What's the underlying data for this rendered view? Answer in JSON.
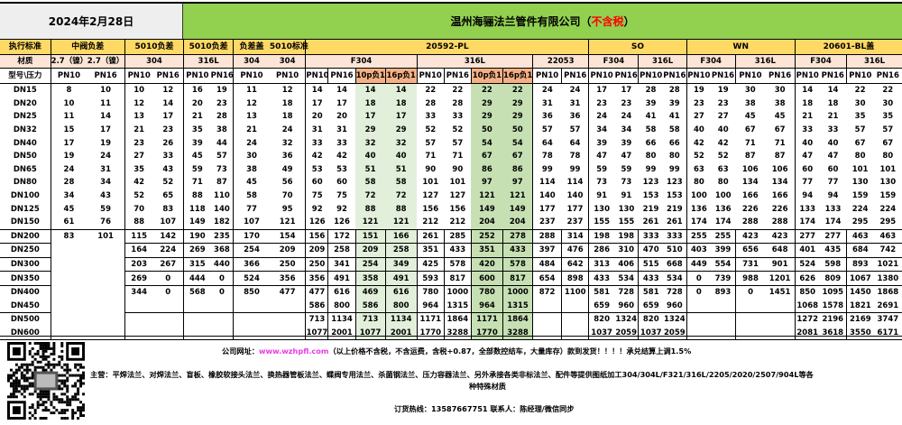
{
  "title": {
    "date": "2024年2月28日",
    "company": "温州海骊法兰管件有限公司（",
    "tax_note": "不含税",
    "close": "）"
  },
  "colors": {
    "title_left": "#eeeeee",
    "title_right": "#92d050",
    "header": "#ffd966",
    "material": "#fce4d6",
    "tolerance_header": "#f4b084",
    "f304_shade": "#e2efda",
    "316l_shade": "#c6e0b4",
    "tax_note": "#ff0000",
    "link": "#e83ae8"
  },
  "header": {
    "row1": [
      {
        "label": "执行标准",
        "span": 1
      },
      {
        "label": "中阀负差",
        "span": 2
      },
      {
        "label": "5010负差",
        "span": 2
      },
      {
        "label": "5010负差",
        "span": 2
      },
      {
        "label": "负差盖",
        "span": 1
      },
      {
        "label": "5010标准",
        "span": 1
      },
      {
        "label": "20592-PL",
        "span": 10
      },
      {
        "label": "SO",
        "span": 4
      },
      {
        "label": "WN",
        "span": 4
      },
      {
        "label": "20601-BL盖",
        "span": 4
      }
    ],
    "row2": [
      {
        "label": "材质",
        "span": 1
      },
      {
        "label": "2.7（镍）",
        "span": 1
      },
      {
        "label": "2.7（镍）",
        "span": 1
      },
      {
        "label": "304",
        "span": 2
      },
      {
        "label": "316L",
        "span": 2
      },
      {
        "label": "304",
        "span": 1
      },
      {
        "label": "304",
        "span": 1
      },
      {
        "label": "F304",
        "span": 4
      },
      {
        "label": "316L",
        "span": 4
      },
      {
        "label": "22053",
        "span": 2
      },
      {
        "label": "F304",
        "span": 2
      },
      {
        "label": "316L",
        "span": 2
      },
      {
        "label": "F304",
        "span": 2
      },
      {
        "label": "316L",
        "span": 2
      },
      {
        "label": "F304",
        "span": 2
      },
      {
        "label": "316L",
        "span": 2
      }
    ],
    "row3": [
      "型号\\压力",
      "PN10",
      "PN16",
      "PN10",
      "PN16",
      "PN10",
      "PN16",
      "PN10",
      "PN10",
      "PN10",
      "PN16",
      "10p负1",
      "16p负1",
      "PN10",
      "PN16",
      "10p负1",
      "16p负1",
      "PN10",
      "PN16",
      "PN10",
      "PN16",
      "PN10",
      "PN16",
      "PN10",
      "PN16",
      "PN10",
      "PN16",
      "PN10",
      "PN16",
      "PN10",
      "PN16"
    ]
  },
  "rows": [
    {
      "size": "DN15",
      "values": [
        8,
        10,
        10,
        12,
        16,
        19,
        11,
        12,
        14,
        14,
        14,
        14,
        22,
        22,
        22,
        22,
        24,
        24,
        17,
        17,
        28,
        28,
        19,
        19,
        30,
        30,
        14,
        14,
        22,
        22
      ]
    },
    {
      "size": "DN20",
      "values": [
        10,
        11,
        12,
        14,
        20,
        23,
        12,
        18,
        17,
        17,
        18,
        18,
        28,
        28,
        29,
        29,
        31,
        31,
        23,
        23,
        39,
        39,
        23,
        23,
        38,
        38,
        18,
        18,
        30,
        30
      ]
    },
    {
      "size": "DN25",
      "values": [
        11,
        14,
        13,
        17,
        21,
        28,
        13,
        18,
        20,
        20,
        17,
        17,
        33,
        33,
        29,
        29,
        36,
        36,
        24,
        24,
        41,
        41,
        27,
        27,
        45,
        45,
        21,
        21,
        35,
        35
      ]
    },
    {
      "size": "DN32",
      "values": [
        15,
        17,
        21,
        23,
        35,
        38,
        21,
        24,
        31,
        31,
        29,
        29,
        52,
        52,
        50,
        50,
        57,
        57,
        34,
        34,
        58,
        58,
        40,
        40,
        67,
        67,
        33,
        33,
        57,
        57
      ]
    },
    {
      "size": "DN40",
      "values": [
        17,
        19,
        23,
        26,
        39,
        44,
        24,
        32,
        33,
        33,
        32,
        32,
        57,
        57,
        54,
        54,
        64,
        64,
        39,
        39,
        66,
        66,
        42,
        42,
        71,
        71,
        40,
        40,
        67,
        67
      ]
    },
    {
      "size": "DN50",
      "values": [
        19,
        24,
        27,
        33,
        45,
        57,
        30,
        36,
        42,
        42,
        40,
        40,
        71,
        71,
        67,
        67,
        78,
        78,
        47,
        47,
        80,
        80,
        52,
        52,
        87,
        87,
        47,
        47,
        80,
        80
      ]
    },
    {
      "size": "DN65",
      "values": [
        24,
        31,
        35,
        43,
        59,
        73,
        38,
        49,
        53,
        53,
        51,
        51,
        90,
        90,
        86,
        86,
        99,
        99,
        59,
        59,
        99,
        99,
        63,
        63,
        106,
        106,
        60,
        60,
        101,
        101
      ]
    },
    {
      "size": "DN80",
      "values": [
        28,
        34,
        42,
        52,
        71,
        87,
        45,
        56,
        60,
        60,
        58,
        58,
        101,
        101,
        97,
        97,
        114,
        114,
        73,
        73,
        123,
        123,
        80,
        80,
        134,
        134,
        77,
        77,
        130,
        130
      ]
    },
    {
      "size": "DN100",
      "values": [
        34,
        43,
        52,
        65,
        88,
        110,
        58,
        70,
        75,
        75,
        72,
        72,
        127,
        127,
        121,
        121,
        140,
        140,
        91,
        91,
        153,
        153,
        100,
        100,
        166,
        166,
        94,
        94,
        159,
        159
      ]
    },
    {
      "size": "DN125",
      "values": [
        45,
        59,
        70,
        83,
        118,
        140,
        77,
        95,
        92,
        92,
        88,
        88,
        156,
        156,
        149,
        149,
        177,
        177,
        130,
        130,
        219,
        219,
        136,
        136,
        226,
        226,
        133,
        133,
        224,
        224
      ]
    },
    {
      "size": "DN150",
      "values": [
        61,
        76,
        88,
        107,
        149,
        182,
        107,
        121,
        126,
        126,
        121,
        121,
        212,
        212,
        204,
        204,
        237,
        237,
        155,
        155,
        261,
        261,
        174,
        174,
        288,
        288,
        174,
        174,
        295,
        295
      ]
    },
    {
      "size": "DN200",
      "values": [
        83,
        101,
        115,
        142,
        190,
        235,
        170,
        154,
        156,
        172,
        151,
        166,
        261,
        285,
        252,
        278,
        288,
        314,
        198,
        198,
        333,
        333,
        255,
        255,
        423,
        423,
        277,
        277,
        463,
        463
      ]
    },
    {
      "size": "DN250",
      "values": [
        null,
        null,
        164,
        224,
        269,
        368,
        254,
        209,
        209,
        258,
        209,
        258,
        351,
        433,
        351,
        433,
        397,
        476,
        286,
        310,
        470,
        510,
        403,
        399,
        656,
        648,
        401,
        435,
        684,
        742
      ]
    },
    {
      "size": "DN300",
      "values": [
        null,
        null,
        203,
        267,
        315,
        440,
        366,
        250,
        250,
        341,
        254,
        349,
        425,
        578,
        420,
        578,
        484,
        642,
        313,
        406,
        515,
        668,
        449,
        554,
        731,
        901,
        524,
        598,
        893,
        1021
      ]
    },
    {
      "size": "DN350",
      "values": [
        null,
        null,
        269,
        0,
        444,
        0,
        524,
        356,
        356,
        491,
        358,
        491,
        593,
        817,
        600,
        817,
        654,
        898,
        433,
        534,
        433,
        534,
        0,
        739,
        988,
        1201,
        626,
        809,
        1067,
        1380
      ]
    },
    {
      "size": "DN400",
      "values": [
        null,
        null,
        344,
        0,
        568,
        0,
        850,
        477,
        477,
        616,
        469,
        616,
        780,
        1000,
        780,
        1000,
        872,
        1100,
        581,
        728,
        581,
        728,
        0,
        893,
        0,
        1451,
        850,
        1095,
        1450,
        1868
      ]
    },
    {
      "size": "DN450",
      "values": [
        null,
        null,
        null,
        null,
        null,
        null,
        null,
        null,
        586,
        800,
        586,
        800,
        964,
        1315,
        964,
        1315,
        null,
        null,
        659,
        960,
        659,
        960,
        null,
        null,
        null,
        null,
        1068,
        1578,
        1821,
        2691
      ]
    },
    {
      "size": "DN500",
      "values": [
        null,
        null,
        null,
        null,
        null,
        null,
        null,
        null,
        713,
        1134,
        713,
        1134,
        1171,
        1864,
        1171,
        1864,
        null,
        null,
        820,
        1324,
        820,
        1324,
        null,
        null,
        null,
        null,
        1272,
        2196,
        2169,
        3747
      ]
    },
    {
      "size": "DN600",
      "values": [
        null,
        null,
        null,
        null,
        null,
        null,
        null,
        null,
        1077,
        2001,
        1077,
        2001,
        1770,
        3288,
        1770,
        3288,
        null,
        null,
        1037,
        2059,
        1037,
        2059,
        null,
        null,
        null,
        null,
        2081,
        3618,
        3550,
        6171
      ]
    }
  ],
  "footer": {
    "website_label": "公司网址：",
    "website": "www.wzhpfl.com",
    "notice": "（以上价格不含税，不含运费，含税+0.87，全部数控结车，大量库存）款到发货！！！！承兑结算上调1.5%",
    "business_line1": "主营：平焊法兰、对焊法兰、盲板、橡胶软接头法兰、换热器管板法兰、蝶阀专用法兰、杀菌钢法兰、压力容器法兰、另外承接各类非标法兰、配件等提供图纸加工304/304L/F321/316L/2205/2020/2507/904L等各",
    "business_line2": "种特殊材质",
    "hotline": "订货热线：13587667751 联系人：陈经理/微信同步"
  }
}
